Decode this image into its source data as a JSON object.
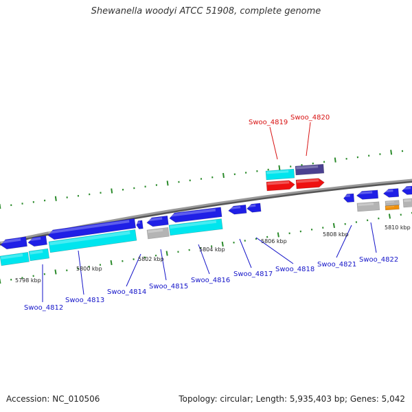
{
  "header": {
    "title": "Shewanella woodyi ATCC 51908, complete genome"
  },
  "footer": {
    "accession": "Accession: NC_010506",
    "topology": "Topology: circular; Length: 5,935,403 bp; Genes: 5,042"
  },
  "colors": {
    "backbone": "#888888",
    "tick": "#2a8a2a",
    "blue_gene": "#1f1fe6",
    "cyan_gene": "#00e5ee",
    "gray_gene": "#b4b4b4",
    "red_gene": "#ee1111",
    "navy_gene": "#4a4090",
    "orange_gene": "#f0900a",
    "label_blue": "#1212c8",
    "label_red": "#d81010",
    "kbp_text": "#222222"
  },
  "kbp_labels": [
    "5798 kbp",
    "5800 kbp",
    "5802 kbp",
    "5804 kbp",
    "5806 kbp",
    "5808 kbp",
    "5810 kbp"
  ],
  "gene_labels": [
    {
      "name": "Swoo_4812",
      "color": "blue"
    },
    {
      "name": "Swoo_4813",
      "color": "blue"
    },
    {
      "name": "Swoo_4814",
      "color": "blue"
    },
    {
      "name": "Swoo_4815",
      "color": "blue"
    },
    {
      "name": "Swoo_4816",
      "color": "blue"
    },
    {
      "name": "Swoo_4817",
      "color": "blue"
    },
    {
      "name": "Swoo_4818",
      "color": "blue"
    },
    {
      "name": "Swoo_4819",
      "color": "red"
    },
    {
      "name": "Swoo_4820",
      "color": "red"
    },
    {
      "name": "Swoo_4821",
      "color": "blue"
    },
    {
      "name": "Swoo_4822",
      "color": "blue"
    }
  ]
}
